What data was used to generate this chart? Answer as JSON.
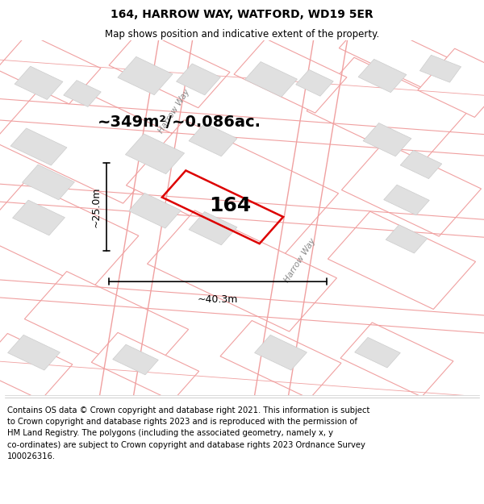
{
  "title": "164, HARROW WAY, WATFORD, WD19 5ER",
  "subtitle": "Map shows position and indicative extent of the property.",
  "footer": "Contains OS data © Crown copyright and database right 2021. This information is subject\nto Crown copyright and database rights 2023 and is reproduced with the permission of\nHM Land Registry. The polygons (including the associated geometry, namely x, y\nco-ordinates) are subject to Crown copyright and database rights 2023 Ordnance Survey\n100026316.",
  "area_text": "~349m²/~0.086ac.",
  "label_164": "164",
  "dim_vertical": "~25.0m",
  "dim_horizontal": "~40.3m",
  "road_label": "Harrow Way",
  "map_bg": "#ffffff",
  "parcel_fill": "#ffffff",
  "parcel_edge": "#f0a0a0",
  "building_fill": "#e0e0e0",
  "building_edge": "#cccccc",
  "road_edge": "#f0a0a0",
  "red_color": "#dd0000",
  "title_fontsize": 10,
  "subtitle_fontsize": 8.5,
  "footer_fontsize": 7.2,
  "area_fontsize": 14,
  "label_fontsize": 18,
  "dim_fontsize": 9
}
